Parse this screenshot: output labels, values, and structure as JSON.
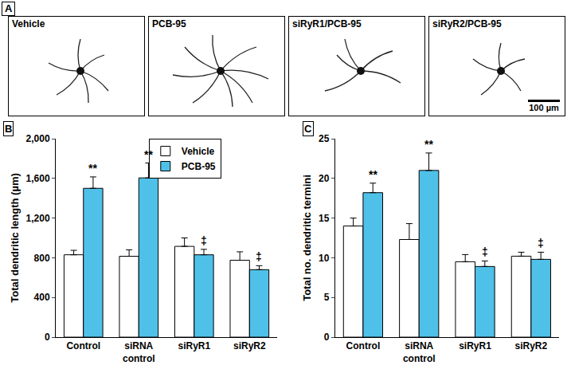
{
  "panel_a": {
    "panel_label": "A",
    "images": [
      "Vehicle",
      "PCB-95",
      "siRyR1/PCB-95",
      "siRyR2/PCB-95"
    ],
    "scale_bar": "100 µm"
  },
  "chart_data": [
    {
      "type": "bar",
      "panel_label": "B",
      "y_label": "Total dendritic length (µm)",
      "categories": [
        "Control",
        "siRNA control",
        "siRyR1",
        "siRyR2"
      ],
      "series": [
        {
          "name": "Vehicle",
          "color": "#ffffff",
          "values": [
            830,
            815,
            915,
            775
          ],
          "errors": [
            45,
            65,
            85,
            85
          ]
        },
        {
          "name": "PCB-95",
          "color": "#4fc1e9",
          "values": [
            1500,
            1605,
            830,
            680
          ],
          "errors": [
            115,
            150,
            55,
            40
          ]
        }
      ],
      "annotations": [
        {
          "category": "Control",
          "series": "PCB-95",
          "text": "**"
        },
        {
          "category": "siRNA control",
          "series": "PCB-95",
          "text": "**"
        },
        {
          "category": "siRyR1",
          "series": "PCB-95",
          "text": "‡"
        },
        {
          "category": "siRyR2",
          "series": "PCB-95",
          "text": "‡"
        }
      ],
      "ylim": [
        0,
        2000
      ],
      "yticks": [
        0,
        400,
        800,
        {
          "value": 1200,
          "label": "1,200"
        },
        {
          "value": 1600,
          "label": "1,600"
        },
        {
          "value": 2000,
          "label": "2,000"
        }
      ],
      "grid": false,
      "legend": "top"
    },
    {
      "type": "bar",
      "panel_label": "C",
      "y_label": "Total no. dendritic termini",
      "categories": [
        "Control",
        "siRNA control",
        "siRyR1",
        "siRyR2"
      ],
      "series": [
        {
          "name": "Vehicle",
          "color": "#ffffff",
          "values": [
            14,
            12.3,
            9.5,
            10.2
          ],
          "errors": [
            1.0,
            2.0,
            0.9,
            0.5
          ]
        },
        {
          "name": "PCB-95",
          "color": "#4fc1e9",
          "values": [
            18.2,
            21,
            8.9,
            9.8
          ],
          "errors": [
            1.2,
            2.2,
            0.7,
            0.9
          ]
        }
      ],
      "annotations": [
        {
          "category": "Control",
          "series": "PCB-95",
          "text": "**"
        },
        {
          "category": "siRNA control",
          "series": "PCB-95",
          "text": "**"
        },
        {
          "category": "siRyR1",
          "series": "PCB-95",
          "text": "‡"
        },
        {
          "category": "siRyR2",
          "series": "PCB-95",
          "text": "‡"
        }
      ],
      "ylim": [
        0,
        25
      ],
      "yticks": [
        0,
        5,
        10,
        15,
        20,
        25
      ],
      "grid": false
    }
  ]
}
